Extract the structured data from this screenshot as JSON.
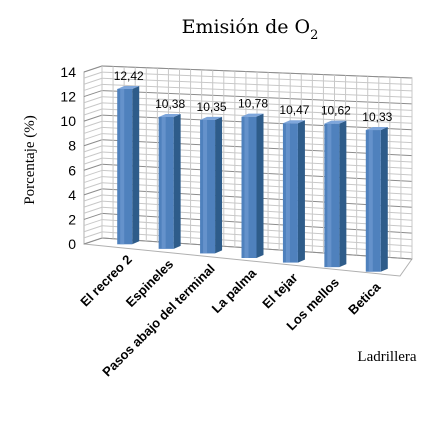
{
  "chart_data": {
    "type": "bar",
    "title_main": "Emisión de O",
    "title_sub": "2",
    "ylabel": "Porcentaje  (%)",
    "xlabel": "Ladrillera",
    "ylim": [
      0,
      14
    ],
    "yticks": [
      0,
      2,
      4,
      6,
      8,
      10,
      12,
      14
    ],
    "grid": true,
    "three_d": true,
    "bar_color": "#4F81BD",
    "categories": [
      "El recreo 2",
      "Espineles",
      "Pasos abajo del terminal",
      "La palma",
      "El tejar",
      "Los mellos",
      "Betica"
    ],
    "values": [
      12.42,
      10.38,
      10.35,
      10.78,
      10.47,
      10.62,
      10.33
    ],
    "data_labels": [
      "12,42",
      "10,38",
      "10,35",
      "10,78",
      "10,47",
      "10,62",
      "10,33"
    ]
  }
}
